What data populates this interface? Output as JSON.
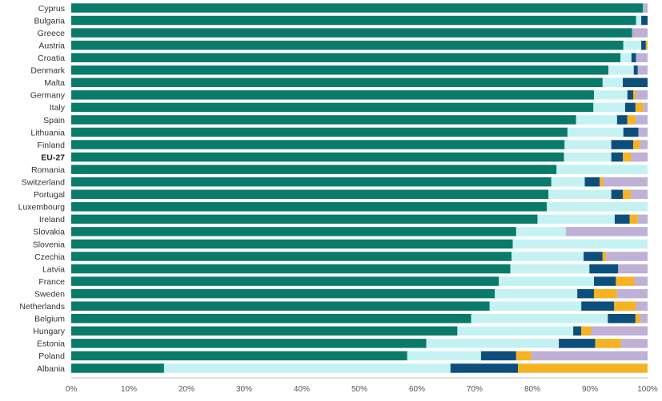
{
  "chart_data": {
    "type": "bar",
    "orientation": "horizontal",
    "stacked": true,
    "categories": [
      "Cyprus",
      "Bulgaria",
      "Greece",
      "Austria",
      "Croatia",
      "Denmark",
      "Malta",
      "Germany",
      "Italy",
      "Spain",
      "Lithuania",
      "Finland",
      "EU-27",
      "Romania",
      "Switzerland",
      "Portugal",
      "Luxembourg",
      "Ireland",
      "Slovakia",
      "Slovenia",
      "Czechia",
      "Latvia",
      "France",
      "Sweden",
      "Netherlands",
      "Belgium",
      "Hungary",
      "Estonia",
      "Poland",
      "Albania"
    ],
    "highlight_category": "EU-27",
    "series": [
      {
        "color": "#0a7a6a",
        "values": [
          99.2,
          98.0,
          97.3,
          95.8,
          95.3,
          93.2,
          92.2,
          90.7,
          90.6,
          87.6,
          86.1,
          85.6,
          85.5,
          84.2,
          83.3,
          82.8,
          82.5,
          80.9,
          77.2,
          76.6,
          76.4,
          76.2,
          74.2,
          73.5,
          72.6,
          69.4,
          67.0,
          61.6,
          58.3,
          16.1
        ]
      },
      {
        "color": "#c4f2f2",
        "values": [
          0.0,
          0.9,
          0.0,
          3.1,
          1.9,
          4.4,
          3.5,
          5.8,
          5.5,
          7.1,
          9.7,
          8.1,
          8.2,
          15.8,
          5.8,
          10.9,
          17.5,
          13.4,
          8.6,
          23.4,
          12.5,
          13.7,
          16.5,
          14.3,
          15.9,
          23.7,
          20.1,
          23.0,
          12.8,
          49.7
        ]
      },
      {
        "color": "#0d4f7c",
        "values": [
          0.0,
          1.1,
          0.0,
          0.8,
          0.8,
          0.7,
          4.3,
          1.0,
          1.8,
          1.8,
          2.6,
          3.8,
          2.0,
          0.0,
          2.6,
          2.0,
          0.0,
          2.6,
          0.0,
          0.0,
          3.3,
          5.0,
          3.8,
          2.9,
          5.7,
          4.8,
          1.4,
          6.3,
          6.1,
          11.7
        ]
      },
      {
        "color": "#f5b223",
        "values": [
          0.0,
          0.0,
          0.0,
          0.3,
          0.0,
          0.0,
          0.0,
          0.5,
          1.3,
          1.4,
          0.0,
          1.2,
          1.4,
          0.0,
          0.6,
          1.4,
          0.0,
          1.4,
          0.0,
          0.0,
          0.6,
          0.0,
          3.2,
          4.0,
          3.8,
          0.8,
          1.7,
          4.5,
          2.6,
          22.5
        ]
      },
      {
        "color": "#bfb0d6",
        "values": [
          0.8,
          0.0,
          2.7,
          0.0,
          2.0,
          1.7,
          0.0,
          2.0,
          0.8,
          2.1,
          1.6,
          1.3,
          2.9,
          0.0,
          7.7,
          2.9,
          0.0,
          1.7,
          14.2,
          0.0,
          7.2,
          5.1,
          2.3,
          5.3,
          2.0,
          1.3,
          9.8,
          4.6,
          20.2,
          0.0
        ]
      }
    ],
    "xlim": [
      0,
      100
    ],
    "xticks": [
      0,
      10,
      20,
      30,
      40,
      50,
      60,
      70,
      80,
      90,
      100
    ],
    "xtick_labels": [
      "0%",
      "10%",
      "20%",
      "30%",
      "40%",
      "50%",
      "60%",
      "70%",
      "80%",
      "90%",
      "100%"
    ],
    "legend": "none",
    "grid": false
  }
}
